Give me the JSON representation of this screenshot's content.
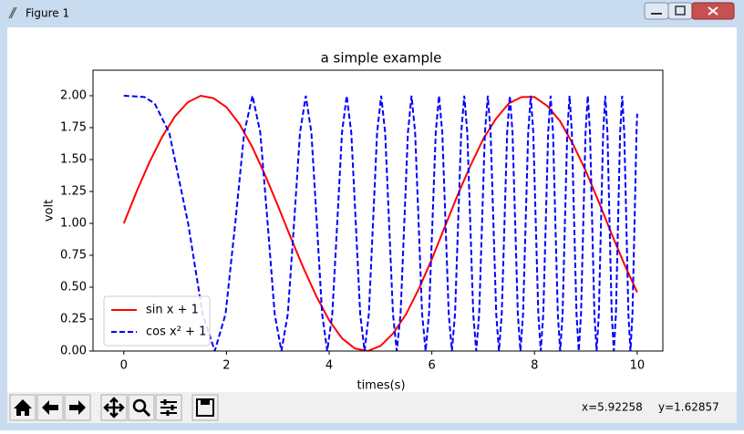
{
  "window": {
    "title": "Figure 1",
    "status_x": "x=5.92258",
    "status_y": "y=1.62857"
  },
  "chart_data": {
    "type": "line",
    "title": "a simple example",
    "xlabel": "times(s)",
    "ylabel": "volt",
    "xlim": [
      -0.6,
      10.5
    ],
    "ylim": [
      0,
      2.2
    ],
    "xticks": [
      0,
      2,
      4,
      6,
      8,
      10
    ],
    "yticks": [
      {
        "value": 0,
        "label": "0.00"
      },
      {
        "value": 0.25,
        "label": "0.25"
      },
      {
        "value": 0.5,
        "label": "0.50"
      },
      {
        "value": 0.75,
        "label": "0.75"
      },
      {
        "value": 1,
        "label": "1.00"
      },
      {
        "value": 1.25,
        "label": "1.25"
      },
      {
        "value": 1.5,
        "label": "1.50"
      },
      {
        "value": 1.75,
        "label": "1.75"
      },
      {
        "value": 2,
        "label": "2.00"
      }
    ],
    "legend": "lower left",
    "series": [
      {
        "name": "sin x + 1",
        "color": "#ff0000",
        "style": "solid",
        "x": [
          0,
          0.25,
          0.5,
          0.75,
          1,
          1.25,
          1.5,
          1.75,
          2,
          2.25,
          2.5,
          2.75,
          3,
          3.25,
          3.5,
          3.75,
          4,
          4.25,
          4.5,
          4.75,
          5,
          5.25,
          5.5,
          5.75,
          6,
          6.25,
          6.5,
          6.75,
          7,
          7.25,
          7.5,
          7.75,
          8,
          8.25,
          8.5,
          8.75,
          9,
          9.25,
          9.5,
          9.75,
          10
        ],
        "values": [
          1.0,
          1.25,
          1.48,
          1.68,
          1.84,
          1.95,
          2.0,
          1.98,
          1.91,
          1.78,
          1.6,
          1.38,
          1.14,
          0.89,
          0.65,
          0.43,
          0.24,
          0.1,
          0.02,
          0.0,
          0.04,
          0.14,
          0.29,
          0.49,
          0.72,
          0.97,
          1.22,
          1.45,
          1.66,
          1.82,
          1.94,
          1.99,
          1.99,
          1.92,
          1.8,
          1.62,
          1.41,
          1.17,
          0.92,
          0.68,
          0.46
        ]
      },
      {
        "name": "cos x² + 1",
        "color": "#0000ff",
        "style": "dashed",
        "x": [
          0,
          0.4,
          0.6,
          0.886,
          1.253,
          1.535,
          1.772,
          1.982,
          2.171,
          2.345,
          2.507,
          2.659,
          2.802,
          2.939,
          3.07,
          3.195,
          3.316,
          3.432,
          3.545,
          3.654,
          3.76,
          3.863,
          3.963,
          4.061,
          4.157,
          4.25,
          4.342,
          4.431,
          4.519,
          4.605,
          4.69,
          4.773,
          4.854,
          4.934,
          5.013,
          5.091,
          5.168,
          5.243,
          5.317,
          5.391,
          5.463,
          5.534,
          5.605,
          5.675,
          5.743,
          5.811,
          5.879,
          5.945,
          6.011,
          6.076,
          6.14,
          6.204,
          6.267,
          6.329,
          6.391,
          6.452,
          6.512,
          6.572,
          6.632,
          6.691,
          6.749,
          6.807,
          6.865,
          6.922,
          6.978,
          7.034,
          7.09,
          7.145,
          7.2,
          7.254,
          7.308,
          7.362,
          7.415,
          7.467,
          7.52,
          7.572,
          7.624,
          7.675,
          7.726,
          7.777,
          7.827,
          7.877,
          7.927,
          7.976,
          8.025,
          8.074,
          8.122,
          8.171,
          8.219,
          8.266,
          8.314,
          8.361,
          8.407,
          8.454,
          8.5,
          8.547,
          8.592,
          8.638,
          8.683,
          8.728,
          8.773,
          8.818,
          8.862,
          8.906,
          8.95,
          8.994,
          9.038,
          9.081,
          9.124,
          9.167,
          9.21,
          9.253,
          9.295,
          9.337,
          9.379,
          9.421,
          9.462,
          9.504,
          9.545,
          9.586,
          9.627,
          9.668,
          9.708,
          9.748,
          9.789,
          9.829,
          9.869,
          9.908,
          9.948,
          9.987,
          10
        ],
        "values": [
          2,
          1.99,
          1.94,
          1.71,
          1,
          0.29,
          0,
          0.29,
          1,
          1.71,
          2,
          1.71,
          1,
          0.29,
          0,
          0.29,
          1,
          1.71,
          2,
          1.71,
          1,
          0.29,
          0,
          0.29,
          1,
          1.71,
          2,
          1.71,
          1,
          0.29,
          0,
          0.29,
          1,
          1.71,
          2,
          1.71,
          1,
          0.29,
          0,
          0.29,
          1,
          1.71,
          2,
          1.71,
          1,
          0.29,
          0,
          0.29,
          1,
          1.71,
          2,
          1.71,
          1,
          0.29,
          0,
          0.29,
          1,
          1.71,
          2,
          1.71,
          1,
          0.29,
          0,
          0.29,
          1,
          1.71,
          2,
          1.71,
          1,
          0.29,
          0,
          0.29,
          1,
          1.71,
          2,
          1.71,
          1,
          0.29,
          0,
          0.29,
          1,
          1.71,
          2,
          1.71,
          1,
          0.29,
          0,
          0.29,
          1,
          1.71,
          2,
          1.71,
          1,
          0.29,
          0,
          0.29,
          1,
          1.71,
          2,
          1.71,
          1,
          0.29,
          0,
          0.29,
          1,
          1.71,
          2,
          1.71,
          1,
          0.29,
          0,
          0.29,
          1,
          1.71,
          2,
          1.71,
          1,
          0.29,
          0,
          0.29,
          1,
          1.71,
          2,
          1.71,
          1,
          0.29,
          0,
          0.29,
          1,
          1.71,
          1.86
        ]
      }
    ]
  }
}
